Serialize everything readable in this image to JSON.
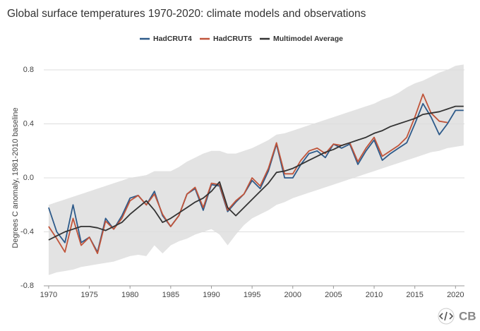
{
  "chart_data": {
    "type": "line",
    "title": "Global surface temperatures 1970-2020: climate models and observations",
    "y_label": "Degrees C anomaly, 1981-2010 baseline",
    "logo": "CB",
    "x": [
      1970,
      1971,
      1972,
      1973,
      1974,
      1975,
      1976,
      1977,
      1978,
      1979,
      1980,
      1981,
      1982,
      1983,
      1984,
      1985,
      1986,
      1987,
      1988,
      1989,
      1990,
      1991,
      1992,
      1993,
      1994,
      1995,
      1996,
      1997,
      1998,
      1999,
      2000,
      2001,
      2002,
      2003,
      2004,
      2005,
      2006,
      2007,
      2008,
      2009,
      2010,
      2011,
      2012,
      2013,
      2014,
      2015,
      2016,
      2017,
      2018,
      2019,
      2020,
      2021
    ],
    "xlim": [
      1969.4,
      2021.1
    ],
    "xticks": [
      1970,
      1975,
      1980,
      1985,
      1990,
      1995,
      2000,
      2005,
      2010,
      2015,
      2020
    ],
    "ylim": [
      -0.8,
      0.8
    ],
    "yticks": [
      -0.8,
      -0.4,
      {
        "value": 0,
        "label": "0.0"
      },
      0.4,
      0.8
    ],
    "grid": true,
    "legend": "top",
    "band": {
      "color": "#e3e3e3",
      "upper": [
        -0.2,
        -0.18,
        -0.16,
        -0.14,
        -0.12,
        -0.1,
        -0.08,
        -0.06,
        -0.04,
        -0.02,
        0.0,
        0.01,
        0.02,
        0.05,
        0.05,
        0.05,
        0.08,
        0.12,
        0.15,
        0.18,
        0.2,
        0.2,
        0.18,
        0.18,
        0.2,
        0.22,
        0.25,
        0.28,
        0.32,
        0.33,
        0.35,
        0.37,
        0.39,
        0.41,
        0.43,
        0.45,
        0.47,
        0.49,
        0.51,
        0.53,
        0.55,
        0.58,
        0.6,
        0.63,
        0.67,
        0.7,
        0.72,
        0.75,
        0.78,
        0.8,
        0.83,
        0.84
      ],
      "lower": [
        -0.72,
        -0.7,
        -0.69,
        -0.68,
        -0.66,
        -0.65,
        -0.64,
        -0.63,
        -0.62,
        -0.6,
        -0.58,
        -0.57,
        -0.58,
        -0.5,
        -0.56,
        -0.5,
        -0.47,
        -0.45,
        -0.42,
        -0.4,
        -0.38,
        -0.42,
        -0.5,
        -0.42,
        -0.35,
        -0.3,
        -0.27,
        -0.24,
        -0.2,
        -0.18,
        -0.15,
        -0.13,
        -0.11,
        -0.09,
        -0.07,
        -0.05,
        -0.03,
        -0.01,
        0.01,
        0.03,
        0.05,
        0.07,
        0.09,
        0.11,
        0.13,
        0.15,
        0.17,
        0.19,
        0.2,
        0.22,
        0.23,
        0.24
      ]
    },
    "series": [
      {
        "name": "HadCRUT4",
        "color": "#2d5a8a",
        "values": [
          -0.22,
          -0.4,
          -0.48,
          -0.2,
          -0.48,
          -0.44,
          -0.55,
          -0.3,
          -0.38,
          -0.28,
          -0.15,
          -0.13,
          -0.2,
          -0.1,
          -0.28,
          -0.36,
          -0.28,
          -0.12,
          -0.08,
          -0.24,
          -0.05,
          -0.06,
          -0.25,
          -0.18,
          -0.12,
          -0.02,
          -0.08,
          0.05,
          0.25,
          0.0,
          0.0,
          0.1,
          0.18,
          0.2,
          0.15,
          0.25,
          0.22,
          0.25,
          0.1,
          0.2,
          0.28,
          0.13,
          0.18,
          0.22,
          0.26,
          0.4,
          0.55,
          0.45,
          0.32,
          0.4,
          0.5,
          0.5
        ]
      },
      {
        "name": "HadCRUT5",
        "color": "#c0543a",
        "values": [
          -0.36,
          -0.45,
          -0.55,
          -0.3,
          -0.5,
          -0.44,
          -0.56,
          -0.32,
          -0.38,
          -0.3,
          -0.17,
          -0.13,
          -0.2,
          -0.12,
          -0.27,
          -0.36,
          -0.28,
          -0.12,
          -0.07,
          -0.22,
          -0.04,
          -0.05,
          -0.24,
          -0.17,
          -0.12,
          0.0,
          -0.06,
          0.07,
          0.26,
          0.03,
          0.03,
          0.13,
          0.2,
          0.22,
          0.18,
          0.25,
          0.24,
          0.26,
          0.12,
          0.22,
          0.3,
          0.16,
          0.2,
          0.24,
          0.3,
          0.45,
          0.62,
          0.48,
          0.42,
          0.41,
          null,
          null
        ]
      },
      {
        "name": "Multimodel Average",
        "color": "#333333",
        "values": [
          -0.46,
          -0.43,
          -0.4,
          -0.38,
          -0.36,
          -0.36,
          -0.37,
          -0.39,
          -0.36,
          -0.33,
          -0.27,
          -0.22,
          -0.17,
          -0.24,
          -0.33,
          -0.3,
          -0.26,
          -0.22,
          -0.18,
          -0.15,
          -0.1,
          -0.03,
          -0.22,
          -0.28,
          -0.22,
          -0.16,
          -0.1,
          -0.04,
          0.04,
          0.05,
          0.07,
          0.1,
          0.13,
          0.16,
          0.19,
          0.21,
          0.24,
          0.26,
          0.28,
          0.3,
          0.33,
          0.35,
          0.38,
          0.4,
          0.42,
          0.44,
          0.47,
          0.48,
          0.49,
          0.51,
          0.53,
          0.53
        ]
      }
    ]
  }
}
